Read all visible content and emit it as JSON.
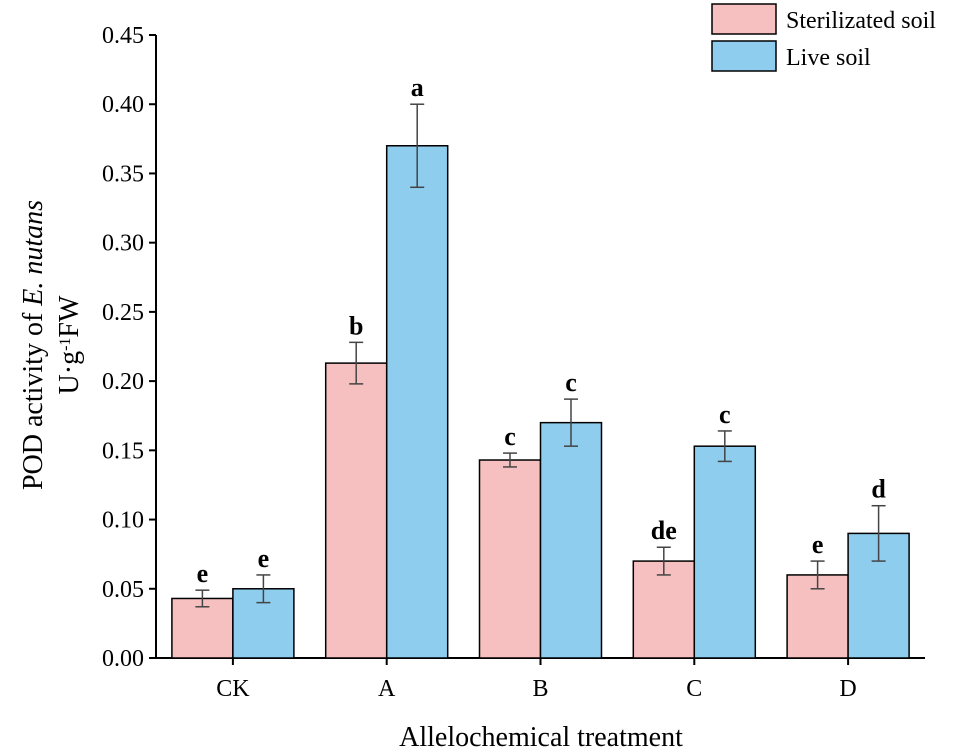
{
  "chart_data": {
    "type": "bar",
    "categories": [
      "CK",
      "A",
      "B",
      "C",
      "D"
    ],
    "series": [
      {
        "name": "Sterilizated soil",
        "color": "#F7C0C0",
        "values": [
          0.043,
          0.213,
          0.143,
          0.07,
          0.06
        ],
        "errors": [
          0.006,
          0.015,
          0.005,
          0.01,
          0.01
        ],
        "sig": [
          "e",
          "b",
          "c",
          "de",
          "e"
        ]
      },
      {
        "name": "Live soil",
        "color": "#8ECDEE",
        "values": [
          0.05,
          0.37,
          0.17,
          0.153,
          0.09
        ],
        "errors": [
          0.01,
          0.03,
          0.017,
          0.011,
          0.02
        ],
        "sig": [
          "e",
          "a",
          "c",
          "c",
          "d"
        ]
      }
    ],
    "yticks": [
      "0.00",
      "0.05",
      "0.10",
      "0.15",
      "0.20",
      "0.25",
      "0.30",
      "0.35",
      "0.40",
      "0.45"
    ],
    "ylim": [
      0,
      0.45
    ],
    "xlabel": "Allelochemical treatment",
    "ylabel": {
      "line1_prefix": "POD activity of ",
      "line1_italic": "E. nutans",
      "line2_prefix": "U·g",
      "line2_sup": "-1",
      "line2_suffix": "FW"
    },
    "legend": {
      "position": "top-right"
    }
  }
}
